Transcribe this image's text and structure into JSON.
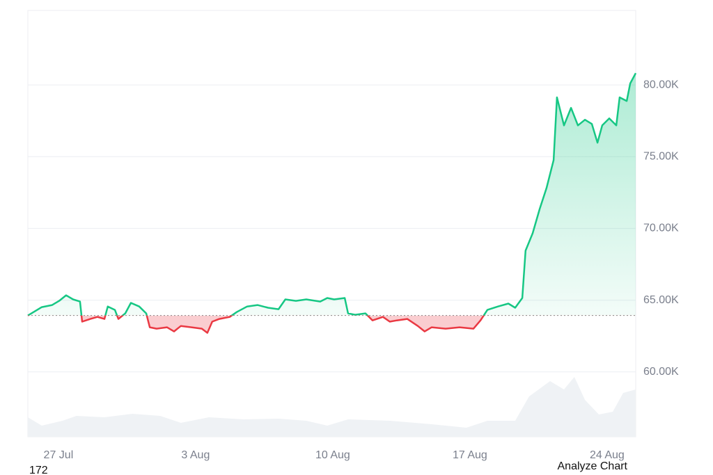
{
  "chart_data": {
    "type": "line",
    "series": [
      {
        "name": "Price",
        "color": "#16c784",
        "color_below": "#ea3943",
        "x": [
          -1.56,
          -1.21,
          -0.85,
          -0.32,
          0.04,
          0.39,
          0.75,
          1.1,
          1.21,
          1.63,
          1.99,
          2.35,
          2.52,
          2.88,
          3.06,
          3.41,
          3.7,
          4.12,
          4.48,
          4.66,
          5.01,
          5.54,
          5.9,
          6.25,
          6.79,
          7.32,
          7.6,
          7.85,
          8.21,
          8.74,
          9.1,
          9.63,
          10.16,
          10.7,
          11.23,
          11.58,
          12.12,
          12.65,
          13.36,
          13.72,
          14.07,
          14.61,
          14.78,
          15.14,
          15.67,
          16.03,
          16.56,
          16.91,
          17.27,
          17.8,
          18.34,
          18.69,
          19.05,
          19.76,
          20.47,
          21.18,
          21.54,
          21.89,
          22.43,
          22.96,
          23.31,
          23.67,
          23.84,
          24.2,
          24.56,
          24.91,
          25.27,
          25.44,
          25.8,
          26.16,
          26.51,
          26.87,
          27.22,
          27.51,
          27.75,
          28.11,
          28.47,
          28.64,
          29.0,
          29.18,
          29.46
        ],
        "values": [
          63930,
          64220,
          64515,
          64660,
          64950,
          65340,
          65050,
          64900,
          63500,
          63690,
          63830,
          63690,
          64560,
          64320,
          63690,
          64080,
          64810,
          64560,
          64080,
          63110,
          63010,
          63110,
          62820,
          63200,
          63110,
          63010,
          62720,
          63500,
          63690,
          63830,
          64170,
          64560,
          64660,
          64470,
          64370,
          65050,
          64950,
          65050,
          64900,
          65150,
          65050,
          65150,
          64080,
          63980,
          64080,
          63590,
          63830,
          63500,
          63590,
          63690,
          63200,
          62820,
          63110,
          63010,
          63110,
          63010,
          63590,
          64320,
          64560,
          64760,
          64470,
          65150,
          68450,
          69660,
          71360,
          72810,
          74760,
          79130,
          77180,
          78400,
          77180,
          77570,
          77280,
          75970,
          77180,
          77670,
          77180,
          79130,
          78880,
          80100,
          80820
        ]
      }
    ],
    "baseline": 63930,
    "volume": {
      "color": "#eff2f5",
      "x": [
        -1.56,
        -0.85,
        0.21,
        0.92,
        2.35,
        3.77,
        5.19,
        6.25,
        7.68,
        9.45,
        11.23,
        12.65,
        13.72,
        14.78,
        16.92,
        19.05,
        20.82,
        21.89,
        23.31,
        24.02,
        25.09,
        25.8,
        26.33,
        26.87,
        27.58,
        28.29,
        28.82,
        29.46
      ],
      "values": [
        28,
        16,
        23,
        30,
        28,
        33,
        30,
        20,
        28,
        25,
        26,
        23,
        16,
        25,
        23,
        18,
        13,
        23,
        23,
        58,
        80,
        68,
        86,
        53,
        32,
        36,
        63,
        68
      ],
      "ylim": [
        0,
        100
      ]
    },
    "xlim": [
      -1.56,
      29.46
    ],
    "xticks": [
      {
        "value": 0,
        "label": "27 Jul"
      },
      {
        "value": 7,
        "label": "3 Aug"
      },
      {
        "value": 14,
        "label": "10 Aug"
      },
      {
        "value": 21,
        "label": "17 Aug"
      },
      {
        "value": 28,
        "label": "24 Aug"
      }
    ],
    "ylim": [
      55480,
      85190
    ],
    "yticks": [
      {
        "value": 60000,
        "label": "60.00K"
      },
      {
        "value": 65000,
        "label": "65.00K"
      },
      {
        "value": 70000,
        "label": "70.00K"
      },
      {
        "value": 75000,
        "label": "75.00K"
      },
      {
        "value": 80000,
        "label": "80.00K"
      }
    ],
    "grid": true,
    "footer_left": "172",
    "footer_right": "Analyze Chart"
  }
}
